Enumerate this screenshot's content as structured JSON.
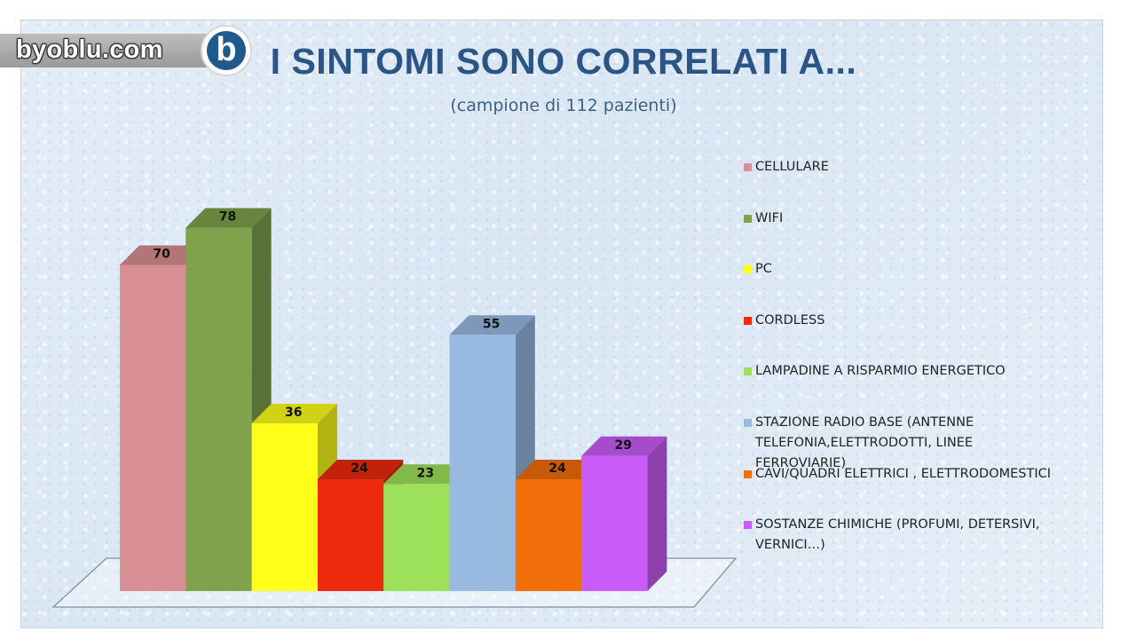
{
  "logo": {
    "text": "byoblu.com",
    "badge": "b"
  },
  "chart_data": {
    "type": "bar",
    "title": "I SINTOMI SONO CORRELATI A...",
    "subtitle": "(campione di 112 pazienti)",
    "categories": [
      "CELLULARE",
      "WIFI",
      "PC",
      "CORDLESS",
      "LAMPADINE A RISPARMIO ENERGETICO",
      "STAZIONE RADIO BASE (ANTENNE TELEFONIA,ELETTRODOTTI, LINEE FERROVIARIE)",
      "CAVI/QUADRI ELETTRICI , ELETTRODOMESTICI",
      "SOSTANZE CHIMICHE (PROFUMI, DETERSIVI, VERNICI…)"
    ],
    "values": [
      70,
      78,
      36,
      24,
      23,
      55,
      24,
      29
    ],
    "colors": [
      "#d99094",
      "#7fa24d",
      "#ffff1a",
      "#ee2a0c",
      "#9de15a",
      "#98b9e0",
      "#f26e0a",
      "#c95cf8"
    ],
    "legend_position": "right",
    "grid": false,
    "three_d": true
  }
}
